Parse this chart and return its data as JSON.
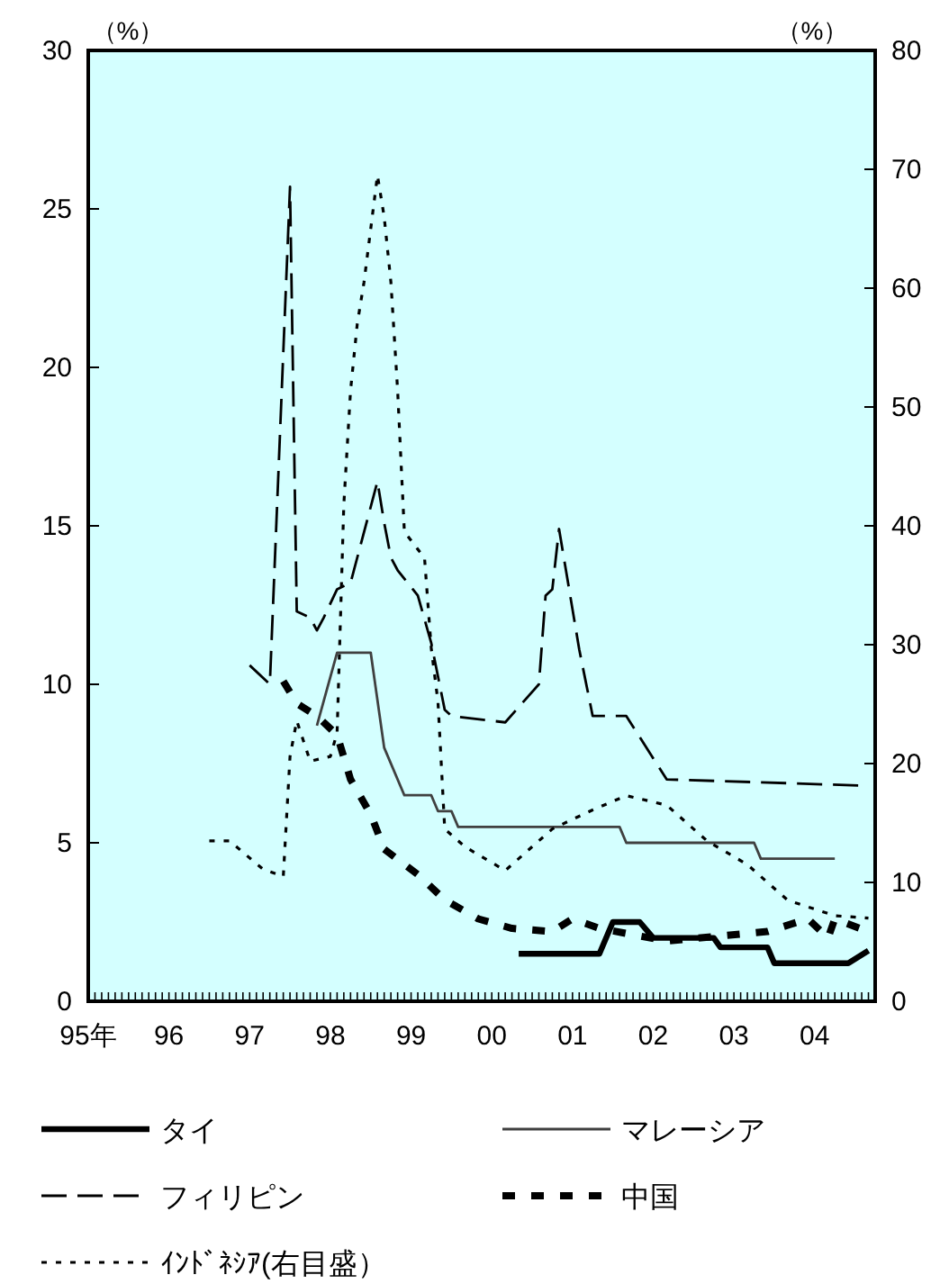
{
  "chart_data": {
    "type": "line",
    "ylabel": "（%）",
    "y2label": "（%）",
    "xlim": [
      "1995-01-01",
      "2004-10-01"
    ],
    "xticks": [
      {
        "value": "1995",
        "label": "95年"
      },
      {
        "value": "1996",
        "label": "96"
      },
      {
        "value": "1997",
        "label": "97"
      },
      {
        "value": "1998",
        "label": "98"
      },
      {
        "value": "1999",
        "label": "99"
      },
      {
        "value": "2000",
        "label": "00"
      },
      {
        "value": "2001",
        "label": "01"
      },
      {
        "value": "2002",
        "label": "02"
      },
      {
        "value": "2003",
        "label": "03"
      },
      {
        "value": "2004",
        "label": "04"
      }
    ],
    "ylim": [
      0,
      30
    ],
    "yticks": [
      0,
      5,
      10,
      15,
      20,
      25,
      30
    ],
    "y2lim": [
      0,
      80
    ],
    "y2ticks": [
      0,
      10,
      20,
      30,
      40,
      50,
      60,
      70,
      80
    ],
    "grid": false,
    "legend": "bottom",
    "series": [
      {
        "name": "タイ",
        "color": "#000000",
        "line_style": "solid",
        "x": [
          "2000-05",
          "2001-05",
          "2001-07",
          "2001-11",
          "2002-01",
          "2002-10",
          "2002-11",
          "2003-06",
          "2003-07",
          "2004-06",
          "2004-09"
        ],
        "values": [
          1.5,
          1.5,
          2.5,
          2.5,
          2.0,
          2.0,
          1.7,
          1.7,
          1.2,
          1.2,
          1.6
        ]
      },
      {
        "name": "マレーシア",
        "color": "#404040",
        "line_style": "solid",
        "x": [
          "1997-11",
          "1998-02",
          "1998-07",
          "1998-09",
          "1998-12",
          "1999-04",
          "1999-05",
          "1999-07",
          "1999-08",
          "2001-08",
          "2001-09",
          "2003-04",
          "2003-05",
          "2004-04"
        ],
        "values": [
          8.7,
          11.0,
          11.0,
          8.0,
          6.5,
          6.5,
          6.0,
          6.0,
          5.5,
          5.5,
          5.0,
          5.0,
          4.5,
          4.5
        ]
      },
      {
        "name": "フィリピン",
        "color": "#000000",
        "line_style": "dashed",
        "x": [
          "1997-01",
          "1997-04",
          "1997-07",
          "1997-08",
          "1997-10",
          "1997-11",
          "1997-12",
          "1998-02",
          "1998-04",
          "1998-08",
          "1998-09",
          "1998-10",
          "1998-11",
          "1999-02",
          "1999-04",
          "1999-06",
          "1999-07",
          "2000-03",
          "2000-08",
          "2000-09",
          "2000-10",
          "2000-11",
          "2001-02",
          "2001-04",
          "2001-09",
          "2002-03",
          "2004-09"
        ],
        "values": [
          10.6,
          10.0,
          25.7,
          12.3,
          12.1,
          11.7,
          12.1,
          13.0,
          13.2,
          16.4,
          15.1,
          14.0,
          13.6,
          12.8,
          11.3,
          9.2,
          9.0,
          8.8,
          10.0,
          12.8,
          13.0,
          14.9,
          11.1,
          9.0,
          9.0,
          7.0,
          6.8
        ]
      },
      {
        "name": "中国",
        "color": "#000000",
        "line_style": "dashed",
        "x": [
          "1997-06",
          "1997-08",
          "1997-11",
          "1998-02",
          "1998-04",
          "1998-07",
          "1998-09",
          "1999-02",
          "1999-06",
          "1999-11",
          "2000-04",
          "2000-10",
          "2001-01",
          "2001-05",
          "2002-03",
          "2003-06",
          "2003-12",
          "2004-03",
          "2004-04",
          "2004-09"
        ],
        "values": [
          10.1,
          9.4,
          9.0,
          8.4,
          7.0,
          5.9,
          4.8,
          4.0,
          3.2,
          2.6,
          2.3,
          2.2,
          2.6,
          2.3,
          1.9,
          2.2,
          2.6,
          2.0,
          2.6,
          2.2
        ]
      },
      {
        "name": "ｲﾝﾄﾞﾈｼｱ(右目盛）",
        "color": "#000000",
        "line_style": "dotted",
        "axis": "y2",
        "x": [
          "1996-07",
          "1996-10",
          "1997-03",
          "1997-06",
          "1997-07",
          "1997-08",
          "1997-10",
          "1998-01",
          "1998-02",
          "1998-03",
          "1998-04",
          "1998-05",
          "1998-06",
          "1998-08",
          "1998-09",
          "1998-10",
          "1998-11",
          "1998-12",
          "1999-03",
          "1999-04",
          "1999-05",
          "1999-06",
          "1999-09",
          "2000-03",
          "2000-10",
          "2001-04",
          "2001-09",
          "2002-03",
          "2002-09",
          "2003-03",
          "2003-09",
          "2004-04",
          "2004-09"
        ],
        "values": [
          13.5,
          13.5,
          11.1,
          10.5,
          20.6,
          23.6,
          20.2,
          20.6,
          22.6,
          41.8,
          51.4,
          57,
          60.5,
          69.5,
          66,
          60.5,
          51.4,
          39.5,
          37.3,
          29.7,
          25.2,
          14.5,
          13.0,
          11.0,
          14.5,
          16.1,
          17.3,
          16.5,
          13.5,
          11.5,
          8.5,
          7.2,
          7.0
        ]
      }
    ]
  }
}
